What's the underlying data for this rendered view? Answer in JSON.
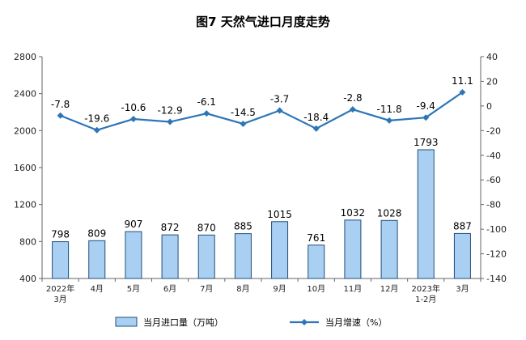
{
  "chart_data": {
    "type": "bar",
    "title": "图7  天然气进口月度走势",
    "categories": [
      [
        "2022年",
        "3月"
      ],
      [
        "4月"
      ],
      [
        "5月"
      ],
      [
        "6月"
      ],
      [
        "7月"
      ],
      [
        "8月"
      ],
      [
        "9月"
      ],
      [
        "10月"
      ],
      [
        "11月"
      ],
      [
        "12月"
      ],
      [
        "2023年",
        "1-2月"
      ],
      [
        "3月"
      ]
    ],
    "series": [
      {
        "name": "当月进口量（万吨）",
        "type": "bar",
        "axis": "left",
        "color": "#a9d0f2",
        "values": [
          798,
          809,
          907,
          872,
          870,
          885,
          1015,
          761,
          1032,
          1028,
          1793,
          887
        ]
      },
      {
        "name": "当月增速（%）",
        "type": "line",
        "axis": "right",
        "color": "#2e75b6",
        "values": [
          -7.8,
          -19.6,
          -10.6,
          -12.9,
          -6.1,
          -14.5,
          -3.7,
          -18.4,
          -2.8,
          -11.8,
          -9.4,
          11.1
        ]
      }
    ],
    "y_left": {
      "min": 400,
      "max": 2800,
      "ticks": [
        400,
        800,
        1200,
        1600,
        2000,
        2400,
        2800
      ]
    },
    "y_right": {
      "min": -140,
      "max": 40,
      "ticks": [
        -140,
        -120,
        -100,
        -80,
        -60,
        -40,
        -20,
        0,
        20,
        40
      ]
    },
    "legend_position": "bottom",
    "grid": false
  }
}
